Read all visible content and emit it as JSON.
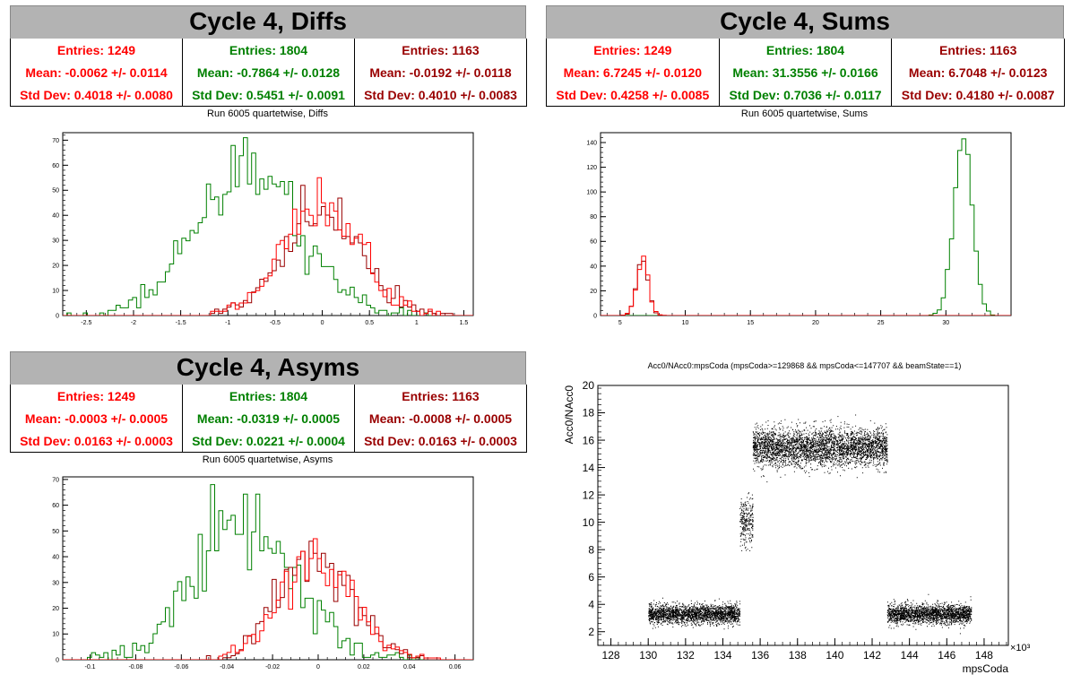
{
  "colors": {
    "red": "#ff0000",
    "green": "#008000",
    "darkred": "#990000"
  },
  "panels": {
    "diffs": {
      "title": "Cycle 4, Diffs",
      "run_title": "Run 6005 quartetwise, Diffs",
      "stats": [
        {
          "entries": "Entries: 1249",
          "mean": "Mean: -0.0062 +/- 0.0114",
          "std": "Std Dev: 0.4018 +/- 0.0080"
        },
        {
          "entries": "Entries: 1804",
          "mean": "Mean: -0.7864 +/- 0.0128",
          "std": "Std Dev: 0.5451 +/- 0.0091"
        },
        {
          "entries": "Entries: 1163",
          "mean": "Mean: -0.0192 +/- 0.0118",
          "std": "Std Dev: 0.4010 +/- 0.0083"
        }
      ]
    },
    "sums": {
      "title": "Cycle 4, Sums",
      "run_title": "Run 6005 quartetwise, Sums",
      "stats": [
        {
          "entries": "Entries: 1249",
          "mean": "Mean: 6.7245 +/- 0.0120",
          "std": "Std Dev: 0.4258 +/- 0.0085"
        },
        {
          "entries": "Entries: 1804",
          "mean": "Mean: 31.3556 +/- 0.0166",
          "std": "Std Dev: 0.7036 +/- 0.0117"
        },
        {
          "entries": "Entries: 1163",
          "mean": "Mean: 6.7048 +/- 0.0123",
          "std": "Std Dev: 0.4180 +/- 0.0087"
        }
      ]
    },
    "asyms": {
      "title": "Cycle 4, Asyms",
      "run_title": "Run 6005 quartetwise, Asyms",
      "stats": [
        {
          "entries": "Entries: 1249",
          "mean": "Mean: -0.0003 +/- 0.0005",
          "std": "Std Dev: 0.0163 +/- 0.0003"
        },
        {
          "entries": "Entries: 1804",
          "mean": "Mean: -0.0319 +/- 0.0005",
          "std": "Std Dev: 0.0221 +/- 0.0004"
        },
        {
          "entries": "Entries: 1163",
          "mean": "Mean: -0.0008 +/- 0.0005",
          "std": "Std Dev: 0.0163 +/- 0.0003"
        }
      ]
    },
    "scatter": {
      "title": "Acc0/NAcc0:mpsCoda (mpsCoda>=129868 && mpsCoda<=147707 && beamState==1)"
    }
  },
  "chart_data": [
    {
      "type": "histogram",
      "name": "diffs",
      "xlim": [
        -2.75,
        1.6
      ],
      "ylim": [
        0,
        73
      ],
      "xticks": [
        -2.5,
        -2,
        -1.5,
        -1,
        -0.5,
        0,
        0.5,
        1,
        1.5
      ],
      "xtick_labels": [
        "-2.5",
        "-2",
        "-1.5",
        "-1",
        "-0.5",
        "0",
        "0.5",
        "1",
        "1.5"
      ],
      "yticks": [
        0,
        10,
        20,
        30,
        40,
        50,
        60,
        70
      ],
      "series": [
        {
          "color": "#008000",
          "mean": -0.7864,
          "sd": 0.5451,
          "entries": 1804,
          "peak": 71,
          "seed": 11
        },
        {
          "color": "#990000",
          "mean": -0.0192,
          "sd": 0.401,
          "entries": 1163,
          "peak": 52,
          "seed": 23
        },
        {
          "color": "#ff0000",
          "mean": -0.0062,
          "sd": 0.4018,
          "entries": 1249,
          "peak": 55,
          "seed": 37
        }
      ]
    },
    {
      "type": "histogram",
      "name": "sums",
      "xlim": [
        3.5,
        35
      ],
      "ylim": [
        0,
        148
      ],
      "xticks": [
        5,
        10,
        15,
        20,
        25,
        30
      ],
      "xtick_labels": [
        "5",
        "10",
        "15",
        "20",
        "25",
        "30"
      ],
      "yticks": [
        0,
        20,
        40,
        60,
        80,
        100,
        120,
        140
      ],
      "series": [
        {
          "color": "#008000",
          "mean": 31.3556,
          "sd": 0.7036,
          "entries": 1804,
          "peak": 143,
          "seed": 41
        },
        {
          "color": "#990000",
          "mean": 6.7048,
          "sd": 0.418,
          "entries": 1163,
          "peak": 44,
          "seed": 53
        },
        {
          "color": "#ff0000",
          "mean": 6.7245,
          "sd": 0.4258,
          "entries": 1249,
          "peak": 48,
          "seed": 67
        }
      ]
    },
    {
      "type": "histogram",
      "name": "asyms",
      "xlim": [
        -0.112,
        0.068
      ],
      "ylim": [
        0,
        71
      ],
      "xticks": [
        -0.1,
        -0.08,
        -0.06,
        -0.04,
        -0.02,
        0,
        0.02,
        0.04,
        0.06
      ],
      "xtick_labels": [
        "-0.1",
        "-0.08",
        "-0.06",
        "-0.04",
        "-0.02",
        "0",
        "0.02",
        "0.04",
        "0.06"
      ],
      "yticks": [
        0,
        10,
        20,
        30,
        40,
        50,
        60,
        70
      ],
      "series": [
        {
          "color": "#008000",
          "mean": -0.0319,
          "sd": 0.0221,
          "entries": 1804,
          "peak": 68,
          "seed": 71
        },
        {
          "color": "#990000",
          "mean": -0.0008,
          "sd": 0.0163,
          "entries": 1163,
          "peak": 46,
          "seed": 83
        },
        {
          "color": "#ff0000",
          "mean": -0.0003,
          "sd": 0.0163,
          "entries": 1249,
          "peak": 47,
          "seed": 97
        }
      ]
    },
    {
      "type": "scatter",
      "name": "acc0_vs_mpscoda",
      "xlabel": "mpsCoda",
      "ylabel": "Acc0/NAcc0",
      "x_multiplier": "×10³",
      "xlim": [
        127.3,
        149.3
      ],
      "ylim": [
        1,
        20
      ],
      "xticks": [
        128,
        130,
        132,
        134,
        136,
        138,
        140,
        142,
        144,
        146,
        148
      ],
      "xtick_labels": [
        "128",
        "130",
        "132",
        "134",
        "136",
        "138",
        "140",
        "142",
        "144",
        "146",
        "148"
      ],
      "yticks": [
        2,
        4,
        6,
        8,
        10,
        12,
        14,
        16,
        18,
        20
      ],
      "ytick_labels": [
        "2",
        "4",
        "6",
        "8",
        "10",
        "12",
        "14",
        "16",
        "18",
        "20"
      ],
      "clusters": [
        {
          "x": [
            130.0,
            134.9
          ],
          "y_center": 3.3,
          "y_sd": 0.35,
          "count": 2200
        },
        {
          "x": [
            134.9,
            135.6
          ],
          "y_center": 10.2,
          "y_sd": 0.9,
          "count": 260
        },
        {
          "x": [
            135.6,
            142.8
          ],
          "y_center": 15.5,
          "y_sd": 0.7,
          "count": 3600
        },
        {
          "x": [
            142.8,
            147.3
          ],
          "y_center": 3.3,
          "y_sd": 0.35,
          "count": 2100
        }
      ]
    }
  ]
}
